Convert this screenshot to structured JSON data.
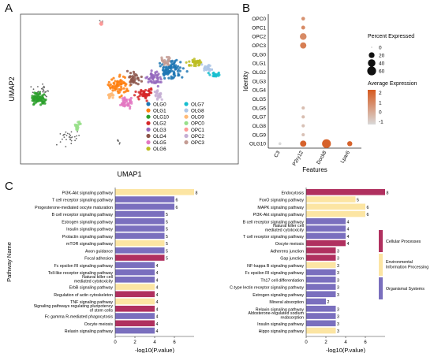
{
  "panels": {
    "a": "A",
    "b": "B",
    "c": "C"
  },
  "colors": {
    "OLG0": "#1f77b4",
    "OLG1": "#ff7f0e",
    "OLG10": "#2ca02c",
    "OLG2": "#d62728",
    "OLG3": "#9467bd",
    "OLG4": "#8c564b",
    "OLG5": "#e377c2",
    "OLG6": "#bcbd22",
    "OLG7": "#17becf",
    "OLG8": "#aec7e8",
    "OLG9": "#ffbb78",
    "OPC0": "#98df8a",
    "OPC1": "#ff9896",
    "OPC2": "#c5b0d5",
    "OPC3": "#c49c94",
    "dot_low": "#d9d9d9",
    "dot_high": "#d65a1f",
    "cellular": "#b0305f",
    "environmental": "#fce5a3",
    "organismal": "#7a6fbe"
  },
  "chart_data": [
    {
      "type": "scatter",
      "panel": "A",
      "xlabel": "UMAP1",
      "ylabel": "UMAP2",
      "legend_position": "bottom-right",
      "series": [
        {
          "name": "OLG0"
        },
        {
          "name": "OLG1"
        },
        {
          "name": "OLG10"
        },
        {
          "name": "OLG2"
        },
        {
          "name": "OLG3"
        },
        {
          "name": "OLG4"
        },
        {
          "name": "OLG5"
        },
        {
          "name": "OLG6"
        },
        {
          "name": "OLG7"
        },
        {
          "name": "OLG8"
        },
        {
          "name": "OLG9"
        },
        {
          "name": "OPC0"
        },
        {
          "name": "OPC1"
        },
        {
          "name": "OPC2"
        },
        {
          "name": "OPC3"
        }
      ]
    },
    {
      "type": "scatter",
      "panel": "B",
      "xlabel": "Features",
      "ylabel": "Identity",
      "categories_x": [
        "C3",
        "P2ry12",
        "Dock8",
        "Lpar6"
      ],
      "categories_y": [
        "OPC0",
        "OPC1",
        "OPC2",
        "OPC3",
        "OLG0",
        "OLG1",
        "OLG2",
        "OLG3",
        "OLG4",
        "OLG5",
        "OLG6",
        "OLG7",
        "OLG8",
        "OLG9",
        "OLG10"
      ],
      "size_legend_title": "Percent Expressed",
      "size_legend_values": [
        0,
        20,
        40,
        60
      ],
      "color_legend_title": "Average Expression",
      "color_legend_ticks": [
        2,
        1,
        0,
        -1
      ],
      "points": [
        {
          "x": "C3",
          "y": "OLG10",
          "pct": 2,
          "avg": -1
        },
        {
          "x": "P2ry12",
          "y": "OPC0",
          "pct": 5,
          "avg": 0.8
        },
        {
          "x": "P2ry12",
          "y": "OPC1",
          "pct": 6,
          "avg": 1.0
        },
        {
          "x": "P2ry12",
          "y": "OPC2",
          "pct": 30,
          "avg": 1.0
        },
        {
          "x": "P2ry12",
          "y": "OPC3",
          "pct": 25,
          "avg": 1.3
        },
        {
          "x": "P2ry12",
          "y": "OLG6",
          "pct": 3,
          "avg": -0.3
        },
        {
          "x": "P2ry12",
          "y": "OLG7",
          "pct": 3,
          "avg": -0.3
        },
        {
          "x": "P2ry12",
          "y": "OLG8",
          "pct": 3,
          "avg": -0.4
        },
        {
          "x": "P2ry12",
          "y": "OLG9",
          "pct": 3,
          "avg": -0.4
        },
        {
          "x": "P2ry12",
          "y": "OLG10",
          "pct": 25,
          "avg": 2.0
        },
        {
          "x": "Dock8",
          "y": "OLG10",
          "pct": 60,
          "avg": 2.0
        },
        {
          "x": "Lpar6",
          "y": "OLG10",
          "pct": 14,
          "avg": 2.0
        }
      ]
    },
    {
      "type": "bar",
      "panel": "C-left",
      "orientation": "horizontal",
      "xlabel": "-log10(P.value)",
      "ylabel": "Pathway Name",
      "xlim": [
        0,
        8
      ],
      "xticks": [
        0,
        2,
        4,
        6
      ],
      "categories": [
        "PI3K-Akt signaling pathway",
        "T cell receptor signaling pathway",
        "Progesterone-mediated oocyte maturation",
        "B cell receptor signaling pathway",
        "Estrogen signaling pathway",
        "Insulin signaling pathway",
        "Prolactin signaling pathway",
        "mTOR signaling pathway",
        "Axon guidance",
        "Focal adhesion",
        "Fc epsilon RI signaling pathway",
        "Toll-like receptor signaling pathway",
        "Natural killer cell mediated cytotoxicity",
        "ErbB signaling pathway",
        "Regulation of actin cytoskeleton",
        "TNF signaling pathway",
        "Signaling pathways regulating pluripotency of stem cells",
        "Fc gamma R-mediated phagocytosis",
        "Oocyte meiosis",
        "Relaxin signaling pathway"
      ],
      "values": [
        8,
        6,
        6,
        5,
        5,
        5,
        5,
        5,
        5,
        5,
        4,
        4,
        4,
        4,
        4,
        4,
        4,
        4,
        4,
        4
      ],
      "groups": [
        "E",
        "O",
        "O",
        "O",
        "O",
        "O",
        "O",
        "E",
        "O",
        "C",
        "O",
        "O",
        "O",
        "E",
        "C",
        "E",
        "C",
        "O",
        "C",
        "O"
      ]
    },
    {
      "type": "bar",
      "panel": "C-right",
      "orientation": "horizontal",
      "xlabel": "-log10(P.value)",
      "xlim": [
        0,
        8
      ],
      "xticks": [
        0,
        2,
        4,
        6
      ],
      "categories": [
        "Endocytosis",
        "FoxO signaling pathway",
        "MAPK signaling pathway",
        "PI3K-Akt signaling pathway",
        "B cell receptor signaling pathway",
        "Natural killer cell mediated cytotoxicity",
        "T cell receptor signaling pathway",
        "Oocyte meiosis",
        "Adherens junction",
        "Gap junction",
        "NF-kappa B signaling pathway",
        "Fc epsilon RI signaling pathway",
        "Th17 cell differentiation",
        "C-type lectin receptor signaling pathway",
        "Estrogen signaling pathway",
        "Mineral absorption",
        "Relaxin signaling pathway",
        "Aldosterone-regulated sodium reabsorption",
        "Insulin signaling pathway",
        "Hippo signaling pathway"
      ],
      "values": [
        8,
        5,
        6,
        6,
        4,
        4,
        4,
        4,
        3,
        3,
        3,
        3,
        3,
        3,
        3,
        2,
        3,
        3,
        3,
        3
      ],
      "groups": [
        "C",
        "E",
        "E",
        "E",
        "O",
        "O",
        "O",
        "C",
        "C",
        "C",
        "E",
        "O",
        "O",
        "O",
        "O",
        "O",
        "O",
        "O",
        "O",
        "E"
      ],
      "legend": [
        {
          "key": "C",
          "label": "Cellular Processes"
        },
        {
          "key": "E",
          "label": "Environmental Information Processing"
        },
        {
          "key": "O",
          "label": "Organismal Systems"
        }
      ]
    }
  ]
}
